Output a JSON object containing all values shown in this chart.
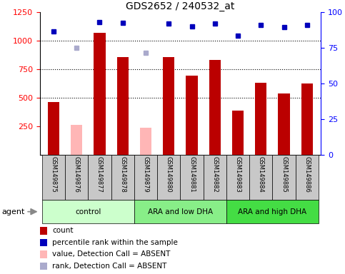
{
  "title": "GDS2652 / 240532_at",
  "samples": [
    "GSM149875",
    "GSM149876",
    "GSM149877",
    "GSM149878",
    "GSM149879",
    "GSM149880",
    "GSM149881",
    "GSM149882",
    "GSM149883",
    "GSM149884",
    "GSM149885",
    "GSM149886"
  ],
  "bar_values": [
    460,
    null,
    1070,
    860,
    null,
    855,
    695,
    835,
    390,
    635,
    535,
    625
  ],
  "bar_absent_values": [
    null,
    265,
    null,
    null,
    240,
    null,
    null,
    null,
    null,
    null,
    null,
    null
  ],
  "percentile_values": [
    1080,
    null,
    1165,
    1155,
    null,
    1150,
    1125,
    1150,
    1045,
    1140,
    1120,
    1140
  ],
  "percentile_absent_values": [
    null,
    940,
    null,
    null,
    895,
    null,
    null,
    null,
    null,
    null,
    null,
    null
  ],
  "bar_color": "#BB0000",
  "bar_absent_color": "#FFB6B6",
  "percentile_color": "#0000BB",
  "percentile_absent_color": "#AAAACC",
  "ylim_left": [
    0,
    1250
  ],
  "ylim_right": [
    0,
    100
  ],
  "yticks_left": [
    250,
    500,
    750,
    1000,
    1250
  ],
  "yticks_right": [
    0,
    25,
    50,
    75,
    100
  ],
  "hlines": [
    500,
    750,
    1000
  ],
  "groups": [
    {
      "label": "control",
      "start": 0,
      "end": 3,
      "color": "#CCFFCC"
    },
    {
      "label": "ARA and low DHA",
      "start": 4,
      "end": 7,
      "color": "#88EE88"
    },
    {
      "label": "ARA and high DHA",
      "start": 8,
      "end": 11,
      "color": "#44DD44"
    }
  ],
  "legend_items": [
    {
      "color": "#BB0000",
      "label": "count"
    },
    {
      "color": "#0000BB",
      "label": "percentile rank within the sample"
    },
    {
      "color": "#FFB6B6",
      "label": "value, Detection Call = ABSENT"
    },
    {
      "color": "#AAAACC",
      "label": "rank, Detection Call = ABSENT"
    }
  ],
  "agent_label": "agent",
  "plot_facecolor": "#FFFFFF",
  "label_box_color": "#C8C8C8",
  "bar_width": 0.5
}
